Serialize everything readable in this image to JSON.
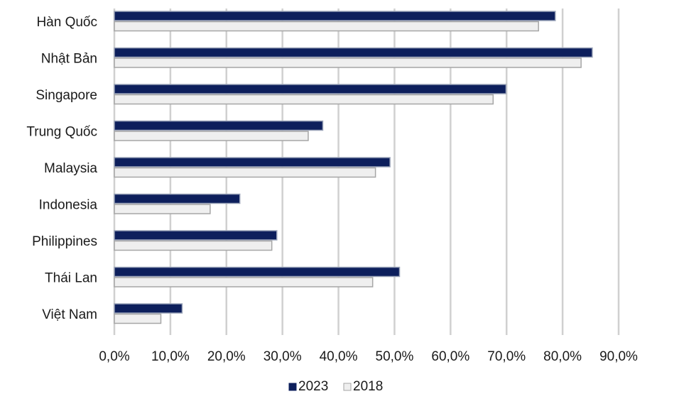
{
  "chart_data": {
    "type": "bar",
    "orientation": "horizontal",
    "categories": [
      "Hàn Quốc",
      "Nhật Bản",
      "Singapore",
      "Trung Quốc",
      "Malaysia",
      "Indonesia",
      "Philippines",
      "Thái Lan",
      "Việt Nam"
    ],
    "series": [
      {
        "name": "2023",
        "color": "#0d1f5c",
        "values": [
          78.7,
          85.3,
          69.9,
          37.2,
          49.2,
          22.4,
          29.0,
          50.9,
          12.1
        ]
      },
      {
        "name": "2018",
        "color": "#efefef",
        "values": [
          75.7,
          83.3,
          67.6,
          34.6,
          46.6,
          17.1,
          28.1,
          46.1,
          8.3
        ]
      }
    ],
    "xlim": [
      0,
      90
    ],
    "xticks": [
      "0,0%",
      "10,0%",
      "20,0%",
      "30,0%",
      "40,0%",
      "50,0%",
      "60,0%",
      "70,0%",
      "80,0%",
      "90,0%"
    ],
    "grid": true,
    "legend_position": "bottom"
  }
}
